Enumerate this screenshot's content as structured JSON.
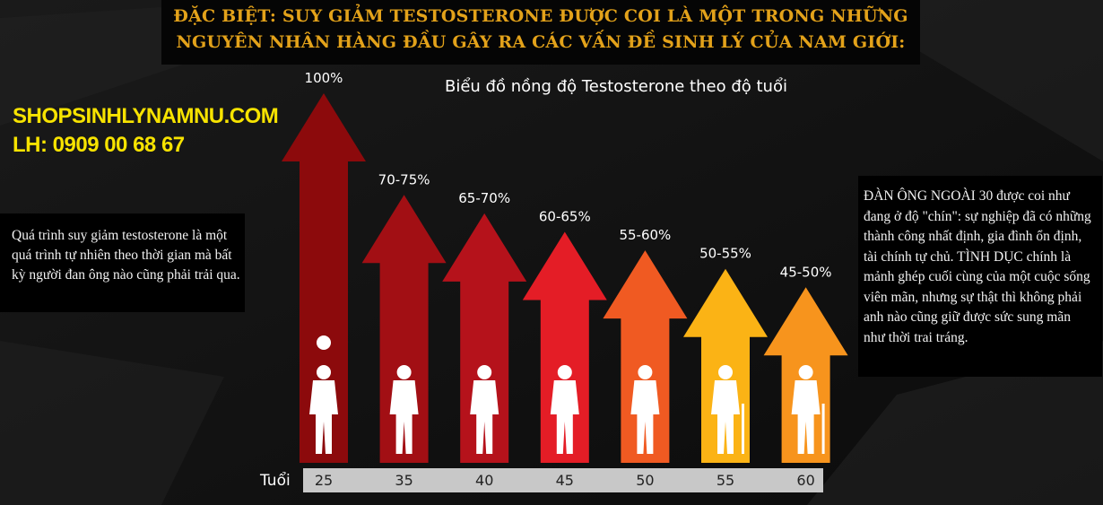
{
  "banner": {
    "line1": "ĐẶC BIỆT: SUY GIẢM TESTOSTERONE ĐƯỢC COI LÀ MỘT TRONG NHỮNG",
    "line2": "NGUYÊN NHÂN HÀNG ĐẦU GÂY RA CÁC VẤN ĐỀ SINH LÝ CỦA NAM GIỚI:"
  },
  "brand": {
    "site": "SHOPSINHLYNAMNU.COM",
    "phone": "LH: 0909 00 68 67"
  },
  "note_left": "Quá trình suy giảm testosterone là một quá trình tự nhiên theo thời gian mà bất kỳ người đan ông nào cũng phải trải qua.",
  "note_right": "ĐÀN ÔNG NGOÀI 30 được coi như đang ở độ \"chín\": sự nghiệp đã có những thành công nhất định, gia đình ổn định, tài chính tự chủ. TÌNH DỤC chính là mảnh ghép cuối cùng của một cuộc sống viên mãn, nhưng sự thật thì không phải anh nào cũng giữ được sức sung mãn như thời trai tráng.",
  "chart_data": {
    "type": "bar",
    "title": "Biểu đồ nồng độ Testosterone theo độ tuổi",
    "xlabel": "Tuổi",
    "ylabel": "",
    "categories": [
      "25",
      "35",
      "40",
      "45",
      "50",
      "55",
      "60"
    ],
    "value_labels": [
      "100%",
      "70-75%",
      "65-70%",
      "60-65%",
      "55-60%",
      "50-55%",
      "45-50%"
    ],
    "values": [
      100,
      72.5,
      67.5,
      62.5,
      57.5,
      52.5,
      47.5
    ],
    "ylim": [
      0,
      100
    ],
    "grid": false,
    "colors": [
      "#8c0a0c",
      "#a20f14",
      "#b5121b",
      "#e41d26",
      "#f05a22",
      "#fbb315",
      "#f7941d"
    ]
  }
}
